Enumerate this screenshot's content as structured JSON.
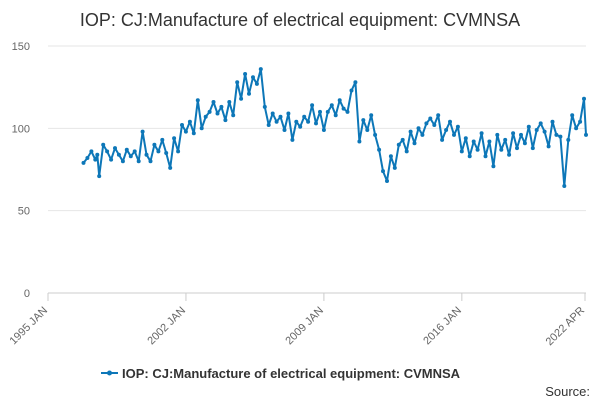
{
  "chart_data": {
    "type": "line",
    "title": "IOP: CJ:Manufacture of electrical equipment: CVMNSA",
    "source_label": "Source:",
    "xlabel": "",
    "ylabel": "",
    "ylim": [
      0,
      150
    ],
    "y_ticks": [
      0,
      50,
      100,
      150
    ],
    "x_range": [
      1995.0,
      2022.3
    ],
    "x_ticks": [
      {
        "label": "1995 JAN",
        "x": 1995.0
      },
      {
        "label": "2002 JAN",
        "x": 2002.0
      },
      {
        "label": "2009 JAN",
        "x": 2009.0
      },
      {
        "label": "2016 JAN",
        "x": 2016.0
      },
      {
        "label": "2022 APR",
        "x": 2022.25
      }
    ],
    "grid": true,
    "legend": "bottom",
    "series": [
      {
        "name": "IOP: CJ:Manufacture of electrical equipment: CVMNSA",
        "color": "#0d77b8",
        "points": [
          [
            1996.8,
            79
          ],
          [
            1997.0,
            82
          ],
          [
            1997.2,
            86
          ],
          [
            1997.4,
            81
          ],
          [
            1997.5,
            84
          ],
          [
            1997.6,
            71
          ],
          [
            1997.8,
            90
          ],
          [
            1998.0,
            86
          ],
          [
            1998.2,
            81
          ],
          [
            1998.4,
            88
          ],
          [
            1998.6,
            84
          ],
          [
            1998.8,
            80
          ],
          [
            1999.0,
            87
          ],
          [
            1999.2,
            83
          ],
          [
            1999.4,
            86
          ],
          [
            1999.6,
            80
          ],
          [
            1999.8,
            98
          ],
          [
            2000.0,
            84
          ],
          [
            2000.2,
            80
          ],
          [
            2000.4,
            90
          ],
          [
            2000.6,
            86
          ],
          [
            2000.8,
            93
          ],
          [
            2001.0,
            85
          ],
          [
            2001.2,
            76
          ],
          [
            2001.4,
            94
          ],
          [
            2001.6,
            86
          ],
          [
            2001.8,
            102
          ],
          [
            2002.0,
            98
          ],
          [
            2002.2,
            104
          ],
          [
            2002.4,
            97
          ],
          [
            2002.6,
            117
          ],
          [
            2002.8,
            100
          ],
          [
            2003.0,
            107
          ],
          [
            2003.2,
            110
          ],
          [
            2003.4,
            116
          ],
          [
            2003.6,
            109
          ],
          [
            2003.8,
            113
          ],
          [
            2004.0,
            105
          ],
          [
            2004.2,
            116
          ],
          [
            2004.4,
            108
          ],
          [
            2004.6,
            128
          ],
          [
            2004.8,
            118
          ],
          [
            2005.0,
            133
          ],
          [
            2005.2,
            121
          ],
          [
            2005.4,
            131
          ],
          [
            2005.6,
            127
          ],
          [
            2005.8,
            136
          ],
          [
            2006.0,
            113
          ],
          [
            2006.2,
            102
          ],
          [
            2006.4,
            109
          ],
          [
            2006.6,
            104
          ],
          [
            2006.8,
            107
          ],
          [
            2007.0,
            99
          ],
          [
            2007.2,
            109
          ],
          [
            2007.4,
            93
          ],
          [
            2007.6,
            104
          ],
          [
            2007.8,
            101
          ],
          [
            2008.0,
            107
          ],
          [
            2008.2,
            104
          ],
          [
            2008.4,
            114
          ],
          [
            2008.6,
            103
          ],
          [
            2008.8,
            110
          ],
          [
            2009.0,
            99
          ],
          [
            2009.2,
            110
          ],
          [
            2009.4,
            114
          ],
          [
            2009.6,
            108
          ],
          [
            2009.8,
            117
          ],
          [
            2010.0,
            112
          ],
          [
            2010.2,
            110
          ],
          [
            2010.4,
            123
          ],
          [
            2010.6,
            128
          ],
          [
            2010.8,
            92
          ],
          [
            2011.0,
            105
          ],
          [
            2011.2,
            99
          ],
          [
            2011.4,
            108
          ],
          [
            2011.6,
            96
          ],
          [
            2011.8,
            87
          ],
          [
            2012.0,
            74
          ],
          [
            2012.2,
            68
          ],
          [
            2012.4,
            83
          ],
          [
            2012.6,
            76
          ],
          [
            2012.8,
            90
          ],
          [
            2013.0,
            93
          ],
          [
            2013.2,
            86
          ],
          [
            2013.4,
            98
          ],
          [
            2013.6,
            91
          ],
          [
            2013.8,
            100
          ],
          [
            2014.0,
            96
          ],
          [
            2014.2,
            103
          ],
          [
            2014.4,
            106
          ],
          [
            2014.6,
            102
          ],
          [
            2014.8,
            108
          ],
          [
            2015.0,
            93
          ],
          [
            2015.2,
            99
          ],
          [
            2015.4,
            104
          ],
          [
            2015.6,
            96
          ],
          [
            2015.8,
            101
          ],
          [
            2016.0,
            86
          ],
          [
            2016.2,
            94
          ],
          [
            2016.4,
            83
          ],
          [
            2016.6,
            92
          ],
          [
            2016.8,
            87
          ],
          [
            2017.0,
            97
          ],
          [
            2017.2,
            83
          ],
          [
            2017.4,
            92
          ],
          [
            2017.6,
            77
          ],
          [
            2017.8,
            96
          ],
          [
            2018.0,
            87
          ],
          [
            2018.2,
            93
          ],
          [
            2018.4,
            84
          ],
          [
            2018.6,
            97
          ],
          [
            2018.8,
            88
          ],
          [
            2019.0,
            96
          ],
          [
            2019.2,
            91
          ],
          [
            2019.4,
            101
          ],
          [
            2019.6,
            88
          ],
          [
            2019.8,
            99
          ],
          [
            2020.0,
            103
          ],
          [
            2020.2,
            98
          ],
          [
            2020.4,
            89
          ],
          [
            2020.6,
            104
          ],
          [
            2020.8,
            96
          ],
          [
            2021.0,
            95
          ],
          [
            2021.2,
            65
          ],
          [
            2021.4,
            93
          ],
          [
            2021.6,
            108
          ],
          [
            2021.8,
            100
          ],
          [
            2022.0,
            104
          ],
          [
            2022.2,
            118
          ],
          [
            2022.3,
            96
          ]
        ]
      }
    ]
  }
}
